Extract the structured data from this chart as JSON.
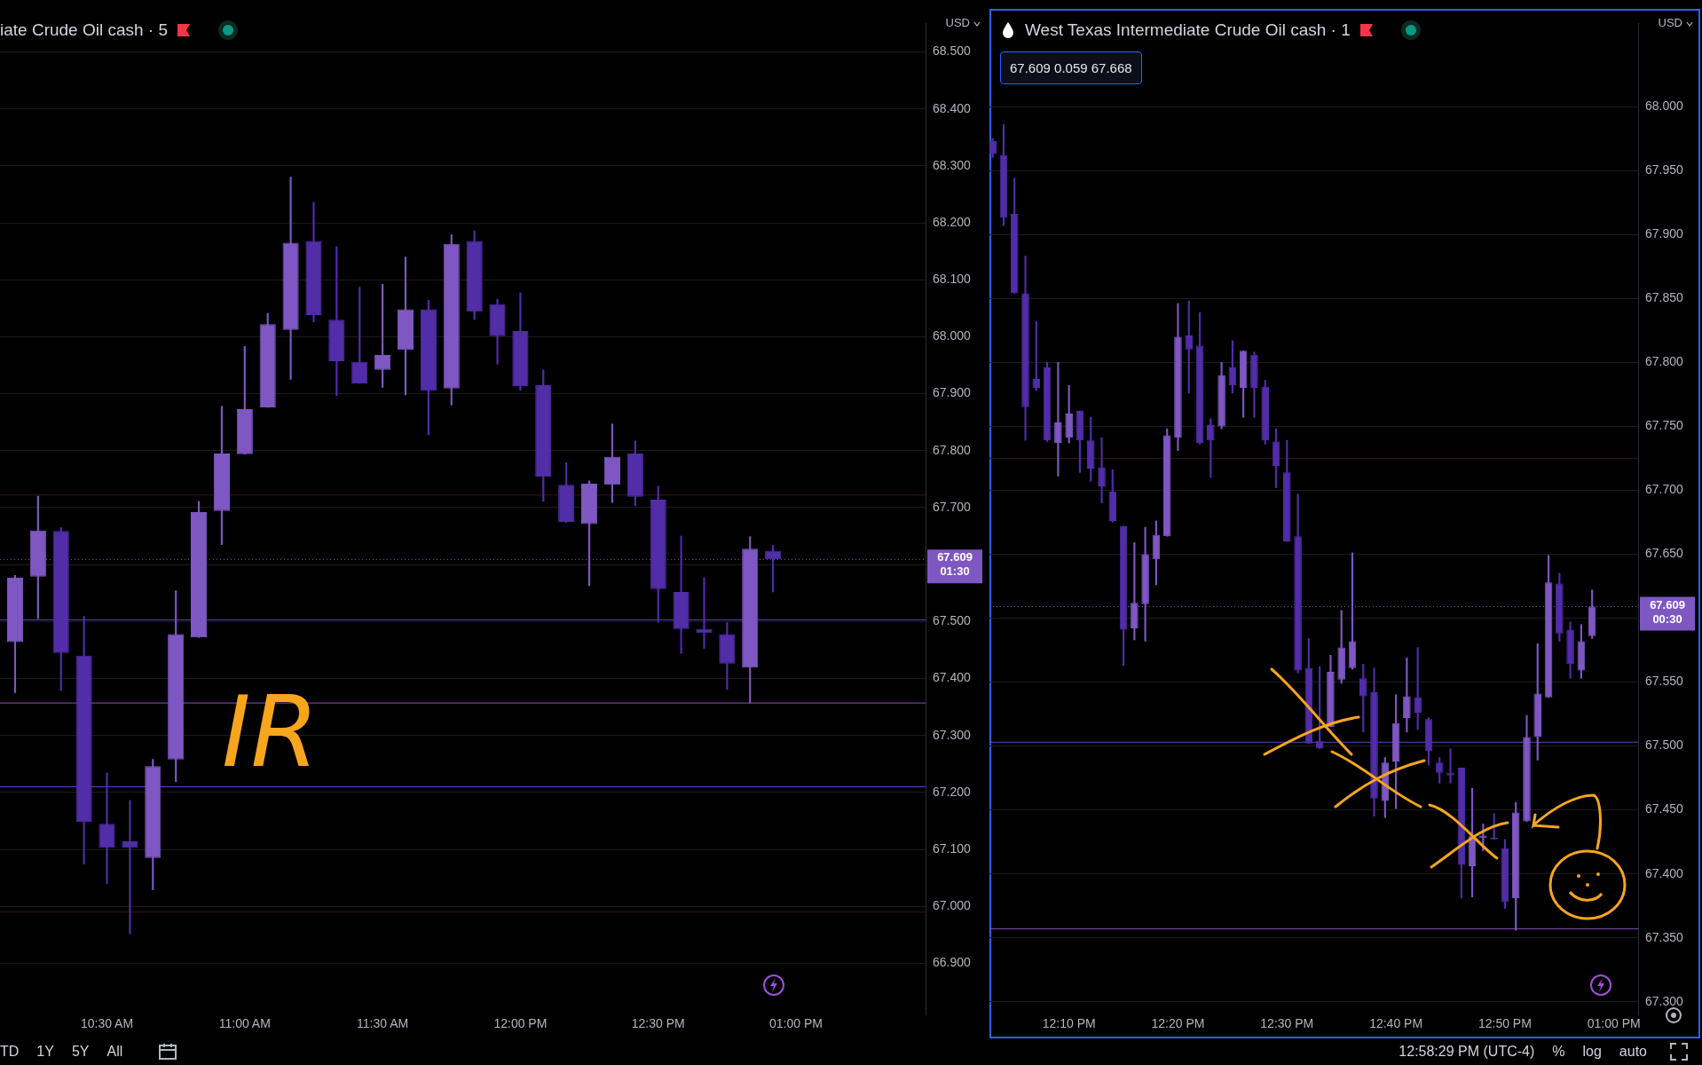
{
  "chart_data": [
    {
      "type": "candlestick",
      "title": "iate Crude Oil cash · 5",
      "ylabel": "USD",
      "x": [
        10.1667,
        10.25,
        10.3333,
        10.4167,
        10.5,
        10.5833,
        10.6667,
        10.75,
        10.8333,
        10.9167,
        11,
        11.0833,
        11.1667,
        11.25,
        11.3333,
        11.4167,
        11.5,
        11.5833,
        11.6667,
        11.75,
        11.8333,
        11.9167,
        12,
        12.0833,
        12.1667,
        12.25,
        12.3333,
        12.4167,
        12.5,
        12.5833,
        12.6667,
        12.75,
        12.8333,
        12.9167
      ],
      "ohlc": [
        [
          67.464,
          67.581,
          67.375,
          67.577
        ],
        [
          67.579,
          67.72,
          67.505,
          67.66
        ],
        [
          67.659,
          67.665,
          67.379,
          67.445
        ],
        [
          67.44,
          67.509,
          67.074,
          67.148
        ],
        [
          67.145,
          67.234,
          67.04,
          67.103
        ],
        [
          67.114,
          67.186,
          66.952,
          67.103
        ],
        [
          67.085,
          67.258,
          67.029,
          67.246
        ],
        [
          67.258,
          67.554,
          67.219,
          67.478
        ],
        [
          67.472,
          67.711,
          67.472,
          67.692
        ],
        [
          67.694,
          67.878,
          67.635,
          67.795
        ],
        [
          67.794,
          67.983,
          67.794,
          67.873
        ],
        [
          67.876,
          68.041,
          67.876,
          68.022
        ],
        [
          68.012,
          68.28,
          67.925,
          68.165
        ],
        [
          68.168,
          68.236,
          68.026,
          68.038
        ],
        [
          68.03,
          68.158,
          67.897,
          67.957
        ],
        [
          67.956,
          68.087,
          67.918,
          67.918
        ],
        [
          67.942,
          68.092,
          67.911,
          67.968
        ],
        [
          67.977,
          68.14,
          67.898,
          68.048
        ],
        [
          68.048,
          68.064,
          67.828,
          67.905
        ],
        [
          67.909,
          68.179,
          67.88,
          68.163
        ],
        [
          68.168,
          68.186,
          68.03,
          68.044
        ],
        [
          68.057,
          68.066,
          67.952,
          68.001
        ],
        [
          68.01,
          68.077,
          67.906,
          67.913
        ],
        [
          67.915,
          67.942,
          67.711,
          67.754
        ],
        [
          67.74,
          67.779,
          67.674,
          67.675
        ],
        [
          67.671,
          67.747,
          67.563,
          67.742
        ],
        [
          67.74,
          67.847,
          67.709,
          67.789
        ],
        [
          67.795,
          67.817,
          67.703,
          67.719
        ],
        [
          67.714,
          67.738,
          67.499,
          67.557
        ],
        [
          67.552,
          67.65,
          67.444,
          67.487
        ],
        [
          67.487,
          67.577,
          67.453,
          67.48
        ],
        [
          67.478,
          67.498,
          67.381,
          67.426
        ],
        [
          67.419,
          67.649,
          67.357,
          67.628
        ],
        [
          67.624,
          67.634,
          67.552,
          67.609
        ]
      ],
      "colors": [
        "#7e57c2",
        "#7e57c2",
        "#512da8",
        "#512da8",
        "#512da8",
        "#512da8",
        "#7e57c2",
        "#7e57c2",
        "#7e57c2",
        "#7e57c2",
        "#7e57c2",
        "#7e57c2",
        "#7e57c2",
        "#512da8",
        "#512da8",
        "#512da8",
        "#7e57c2",
        "#7e57c2",
        "#512da8",
        "#7e57c2",
        "#512da8",
        "#512da8",
        "#512da8",
        "#512da8",
        "#512da8",
        "#7e57c2",
        "#7e57c2",
        "#512da8",
        "#512da8",
        "#512da8",
        "#512da8",
        "#512da8",
        "#7e57c2",
        "#512da8"
      ],
      "xlim": [
        10.112,
        13.47
      ],
      "xticks": [
        {
          "value": 10.5,
          "label": "10:30 AM"
        },
        {
          "value": 11,
          "label": "11:00 AM"
        },
        {
          "value": 11.5,
          "label": "11:30 AM"
        },
        {
          "value": 12,
          "label": "12:00 PM"
        },
        {
          "value": 12.5,
          "label": "12:30 PM"
        },
        {
          "value": 13,
          "label": "01:00 PM"
        }
      ],
      "ylim": [
        66.81,
        68.55
      ],
      "yticks": [
        {
          "value": 66.9,
          "label": "66.900"
        },
        {
          "value": 67,
          "label": "67.000"
        },
        {
          "value": 67.1,
          "label": "67.100"
        },
        {
          "value": 67.2,
          "label": "67.200"
        },
        {
          "value": 67.3,
          "label": "67.300"
        },
        {
          "value": 67.4,
          "label": "67.400"
        },
        {
          "value": 67.5,
          "label": "67.500"
        },
        {
          "value": 67.6,
          "label": null
        },
        {
          "value": 67.7,
          "label": "67.700"
        },
        {
          "value": 67.8,
          "label": "67.800"
        },
        {
          "value": 67.9,
          "label": "67.900"
        },
        {
          "value": 68,
          "label": "68.000"
        },
        {
          "value": 68.1,
          "label": "68.100"
        },
        {
          "value": 68.2,
          "label": "68.200"
        },
        {
          "value": 68.3,
          "label": "68.300"
        },
        {
          "value": 68.4,
          "label": "68.400"
        },
        {
          "value": 68.5,
          "label": "68.500"
        }
      ],
      "grid": "y",
      "ref_lines": [
        {
          "axis": "y",
          "value": 67.503,
          "color": "#5b47c5"
        },
        {
          "axis": "y",
          "value": 67.357,
          "color": "#8a4fbf"
        },
        {
          "axis": "y",
          "value": 67.21,
          "color": "#5b47c5"
        },
        {
          "axis": "y",
          "value": 67.722,
          "color": "#3a1418"
        },
        {
          "axis": "y",
          "value": 66.99,
          "color": "#3a1418"
        },
        {
          "axis": "y",
          "value": 67.609,
          "label": "67.609 01:30",
          "color": "#7e57c2",
          "line_style": "dotted"
        }
      ],
      "annotations": [
        "IR",
        "TD",
        "1Y",
        "5Y",
        "All"
      ]
    },
    {
      "type": "candlestick",
      "title": "West Texas Intermediate Crude Oil cash · 1",
      "subtitle": "67.609 0.059 67.668",
      "ylabel": "USD",
      "x": [
        12.05,
        12.0667,
        12.0833,
        12.1,
        12.1167,
        12.1333,
        12.15,
        12.1667,
        12.1833,
        12.2,
        12.2167,
        12.2333,
        12.25,
        12.2667,
        12.2833,
        12.3,
        12.3167,
        12.3333,
        12.35,
        12.3667,
        12.3833,
        12.4,
        12.4167,
        12.4333,
        12.45,
        12.4667,
        12.4833,
        12.5,
        12.5167,
        12.5333,
        12.55,
        12.5667,
        12.5833,
        12.6,
        12.6167,
        12.6333,
        12.65,
        12.6667,
        12.6833,
        12.7,
        12.7167,
        12.7333,
        12.75,
        12.7667,
        12.7833,
        12.8,
        12.8167,
        12.8333,
        12.85,
        12.8667,
        12.8833,
        12.9,
        12.9167,
        12.9333,
        12.95,
        12.9667
      ],
      "ohlc": [
        [
          67.973,
          67.975,
          67.96,
          67.963
        ],
        [
          67.962,
          67.986,
          67.907,
          67.913
        ],
        [
          67.916,
          67.944,
          67.854,
          67.854
        ],
        [
          67.854,
          67.883,
          67.739,
          67.765
        ],
        [
          67.787,
          67.832,
          67.778,
          67.78
        ],
        [
          67.796,
          67.8,
          67.738,
          67.739
        ],
        [
          67.737,
          67.8,
          67.711,
          67.753
        ],
        [
          67.741,
          67.782,
          67.737,
          67.76
        ],
        [
          67.762,
          67.762,
          67.714,
          67.739
        ],
        [
          67.739,
          67.757,
          67.707,
          67.717
        ],
        [
          67.718,
          67.741,
          67.69,
          67.703
        ],
        [
          67.699,
          67.716,
          67.675,
          67.676
        ],
        [
          67.672,
          67.672,
          67.563,
          67.591
        ],
        [
          67.592,
          67.659,
          67.583,
          67.612
        ],
        [
          67.611,
          67.671,
          67.582,
          67.65
        ],
        [
          67.646,
          67.676,
          67.626,
          67.665
        ],
        [
          67.664,
          67.748,
          67.664,
          67.743
        ],
        [
          67.741,
          67.846,
          67.731,
          67.82
        ],
        [
          67.821,
          67.848,
          67.776,
          67.81
        ],
        [
          67.813,
          67.839,
          67.736,
          67.737
        ],
        [
          67.751,
          67.756,
          67.71,
          67.739
        ],
        [
          67.75,
          67.8,
          67.748,
          67.79
        ],
        [
          67.796,
          67.817,
          67.776,
          67.782
        ],
        [
          67.78,
          67.809,
          67.757,
          67.809
        ],
        [
          67.806,
          67.808,
          67.757,
          67.78
        ],
        [
          67.781,
          67.786,
          67.736,
          67.739
        ],
        [
          67.738,
          67.748,
          67.702,
          67.719
        ],
        [
          67.714,
          67.739,
          67.66,
          67.66
        ],
        [
          67.664,
          67.697,
          67.557,
          67.559
        ],
        [
          67.561,
          67.584,
          67.502,
          67.502
        ],
        [
          67.504,
          67.562,
          67.498,
          67.498
        ],
        [
          67.515,
          67.571,
          67.515,
          67.558
        ],
        [
          67.552,
          67.606,
          67.549,
          67.577
        ],
        [
          67.561,
          67.651,
          67.56,
          67.582
        ],
        [
          67.553,
          67.564,
          67.511,
          67.539
        ],
        [
          67.542,
          67.561,
          67.445,
          67.459
        ],
        [
          67.457,
          67.491,
          67.444,
          67.487
        ],
        [
          67.488,
          67.54,
          67.451,
          67.518
        ],
        [
          67.522,
          67.569,
          67.511,
          67.539
        ],
        [
          67.538,
          67.577,
          67.513,
          67.526
        ],
        [
          67.521,
          67.522,
          67.485,
          67.496
        ],
        [
          67.487,
          67.491,
          67.471,
          67.479
        ],
        [
          67.479,
          67.498,
          67.471,
          67.477
        ],
        [
          67.483,
          67.483,
          67.381,
          67.407
        ],
        [
          67.406,
          67.467,
          67.382,
          67.43
        ],
        [
          67.428,
          67.439,
          67.418,
          67.43
        ],
        [
          67.428,
          67.447,
          67.427,
          67.427
        ],
        [
          67.42,
          67.427,
          67.373,
          67.378
        ],
        [
          67.381,
          67.456,
          67.356,
          67.448
        ],
        [
          67.441,
          67.524,
          67.441,
          67.507
        ],
        [
          67.507,
          67.58,
          67.489,
          67.541
        ],
        [
          67.538,
          67.649,
          67.538,
          67.628
        ],
        [
          67.627,
          67.635,
          67.582,
          67.588
        ],
        [
          67.591,
          67.597,
          67.553,
          67.564
        ],
        [
          67.559,
          67.595,
          67.553,
          67.582
        ],
        [
          67.586,
          67.622,
          67.584,
          67.609
        ]
      ],
      "colors": [
        "#512da8",
        "#512da8",
        "#512da8",
        "#512da8",
        "#512da8",
        "#512da8",
        "#7e57c2",
        "#7e57c2",
        "#512da8",
        "#512da8",
        "#512da8",
        "#512da8",
        "#512da8",
        "#7e57c2",
        "#7e57c2",
        "#7e57c2",
        "#7e57c2",
        "#7e57c2",
        "#512da8",
        "#512da8",
        "#512da8",
        "#7e57c2",
        "#512da8",
        "#7e57c2",
        "#512da8",
        "#512da8",
        "#512da8",
        "#512da8",
        "#512da8",
        "#512da8",
        "#512da8",
        "#7e57c2",
        "#7e57c2",
        "#7e57c2",
        "#512da8",
        "#512da8",
        "#7e57c2",
        "#7e57c2",
        "#7e57c2",
        "#512da8",
        "#512da8",
        "#512da8",
        "#512da8",
        "#512da8",
        "#7e57c2",
        "#7e57c2",
        "#512da8",
        "#512da8",
        "#7e57c2",
        "#7e57c2",
        "#7e57c2",
        "#7e57c2",
        "#512da8",
        "#512da8",
        "#7e57c2",
        "#7e57c2"
      ],
      "xlim": [
        12.045,
        13.037
      ],
      "xticks": [
        {
          "value": 12.1667,
          "label": "12:10 PM"
        },
        {
          "value": 12.3333,
          "label": "12:20 PM"
        },
        {
          "value": 12.5,
          "label": "12:30 PM"
        },
        {
          "value": 12.6667,
          "label": "12:40 PM"
        },
        {
          "value": 12.8333,
          "label": "12:50 PM"
        },
        {
          "value": 13,
          "label": "01:00 PM"
        }
      ],
      "ylim": [
        67.29,
        68.065
      ],
      "yticks": [
        {
          "value": 67.3,
          "label": "67.300"
        },
        {
          "value": 67.35,
          "label": "67.350"
        },
        {
          "value": 67.4,
          "label": "67.400"
        },
        {
          "value": 67.45,
          "label": "67.450"
        },
        {
          "value": 67.5,
          "label": "67.500"
        },
        {
          "value": 67.55,
          "label": "67.550"
        },
        {
          "value": 67.6,
          "label": null
        },
        {
          "value": 67.65,
          "label": "67.650"
        },
        {
          "value": 67.7,
          "label": "67.700"
        },
        {
          "value": 67.75,
          "label": "67.750"
        },
        {
          "value": 67.8,
          "label": "67.800"
        },
        {
          "value": 67.85,
          "label": "67.850"
        },
        {
          "value": 67.9,
          "label": "67.900"
        },
        {
          "value": 67.95,
          "label": "67.950"
        },
        {
          "value": 68,
          "label": "68.000"
        }
      ],
      "grid": "y",
      "ref_lines": [
        {
          "axis": "y",
          "value": 67.503,
          "color": "#5b47c5"
        },
        {
          "axis": "y",
          "value": 67.357,
          "color": "#8a4fbf"
        },
        {
          "axis": "y",
          "value": 67.725,
          "color": "#3a1418"
        },
        {
          "axis": "y",
          "value": 67.609,
          "label": "67.609 00:30",
          "color": "#7e57c2",
          "line_style": "dotted"
        }
      ],
      "annotations": [
        "12:58:29 PM (UTC-4)",
        "%",
        "log",
        "auto"
      ]
    }
  ]
}
